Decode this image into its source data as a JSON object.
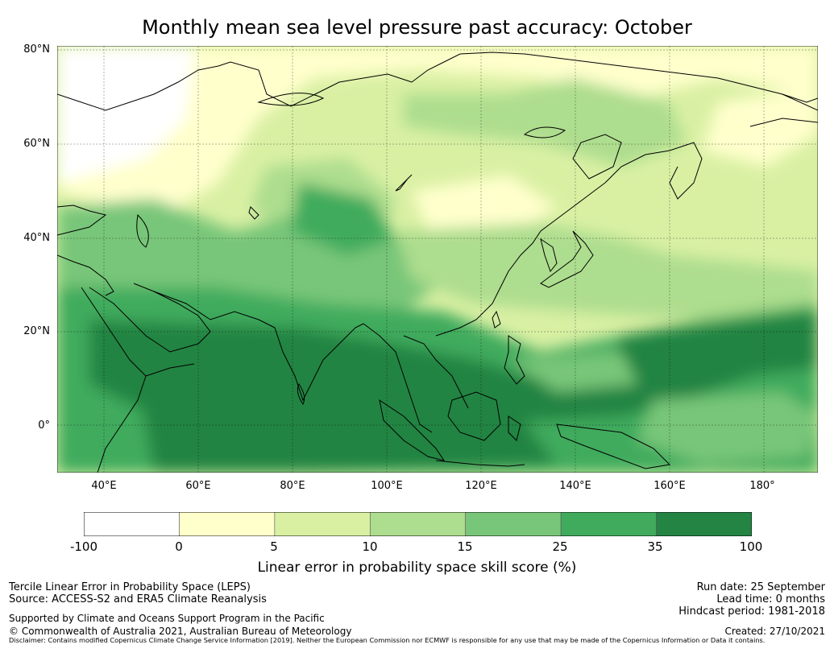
{
  "title": "Monthly mean sea level pressure past accuracy: October",
  "map": {
    "lat_labels": [
      "80°N",
      "60°N",
      "40°N",
      "20°N",
      "0°"
    ],
    "lon_labels": [
      "40°E",
      "60°E",
      "80°E",
      "100°E",
      "120°E",
      "140°E",
      "160°E",
      "180°"
    ]
  },
  "colorbar": {
    "ticks": [
      "-100",
      "0",
      "5",
      "10",
      "15",
      "25",
      "35",
      "100"
    ],
    "colors": [
      "#ffffff",
      "#ffffcc",
      "#d9f0a3",
      "#addd8e",
      "#78c679",
      "#41ab5d",
      "#238443"
    ],
    "label": "Linear error in probability space skill score (%)"
  },
  "footer": {
    "left": [
      "Tercile Linear Error in Probability Space (LEPS)",
      "Source: ACCESS-S2 and ERA5 Climate Reanalysis",
      "Supported by Climate and Oceans Support Program in the Pacific",
      "© Commonwealth of Australia 2021, Australian Bureau of Meteorology"
    ],
    "right": [
      "Run date: 25 September",
      "Lead time: 0 months",
      "Hindcast period: 1981-2018",
      "Created: 27/10/2021"
    ],
    "disclaimer": "Disclaimer: Contains modified Copernicus Climate Change Service Information [2019]. Neither the European Commission nor ECMWF is responsible for any use that may be made of the Copernicus Information or Data it contains."
  }
}
